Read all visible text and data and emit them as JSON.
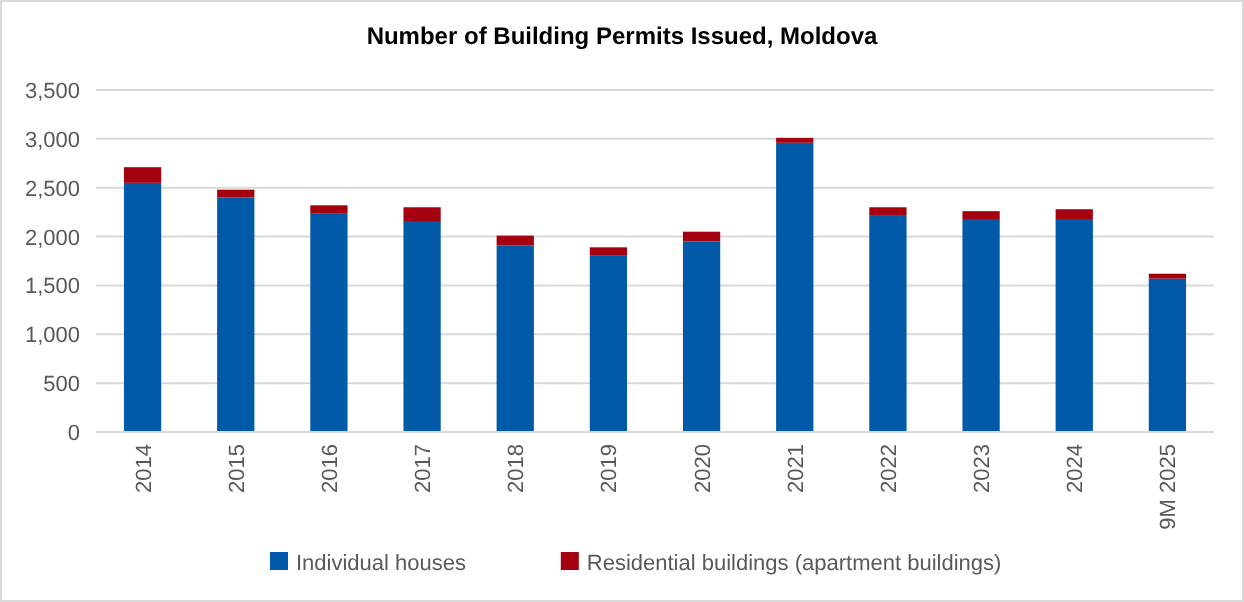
{
  "chart_data": {
    "type": "bar",
    "title": "Number of Building Permits Issued, Moldova",
    "categories": [
      "2014",
      "2015",
      "2016",
      "2017",
      "2018",
      "2019",
      "2020",
      "2021",
      "2022",
      "2023",
      "2024",
      "9M 2025"
    ],
    "stacked": true,
    "series": [
      {
        "name": "Individual houses",
        "color": "#005aa7",
        "values": [
          2550,
          2400,
          2240,
          2150,
          1910,
          1810,
          1950,
          2960,
          2220,
          2180,
          2180,
          1570
        ]
      },
      {
        "name": "Residential buildings (apartment buildings)",
        "color": "#a50010",
        "values": [
          160,
          80,
          80,
          150,
          100,
          80,
          100,
          50,
          80,
          80,
          100,
          50
        ]
      }
    ],
    "ylim": [
      0,
      3500
    ],
    "yticks": [
      {
        "value": 0,
        "label": "0"
      },
      {
        "value": 500,
        "label": "500"
      },
      {
        "value": 1000,
        "label": "1,000"
      },
      {
        "value": 1500,
        "label": "1,500"
      },
      {
        "value": 2000,
        "label": "2,000"
      },
      {
        "value": 2500,
        "label": "2,500"
      },
      {
        "value": 3000,
        "label": "3,000"
      },
      {
        "value": 3500,
        "label": "3,500"
      }
    ],
    "grid": "y",
    "legend": "bottom"
  }
}
